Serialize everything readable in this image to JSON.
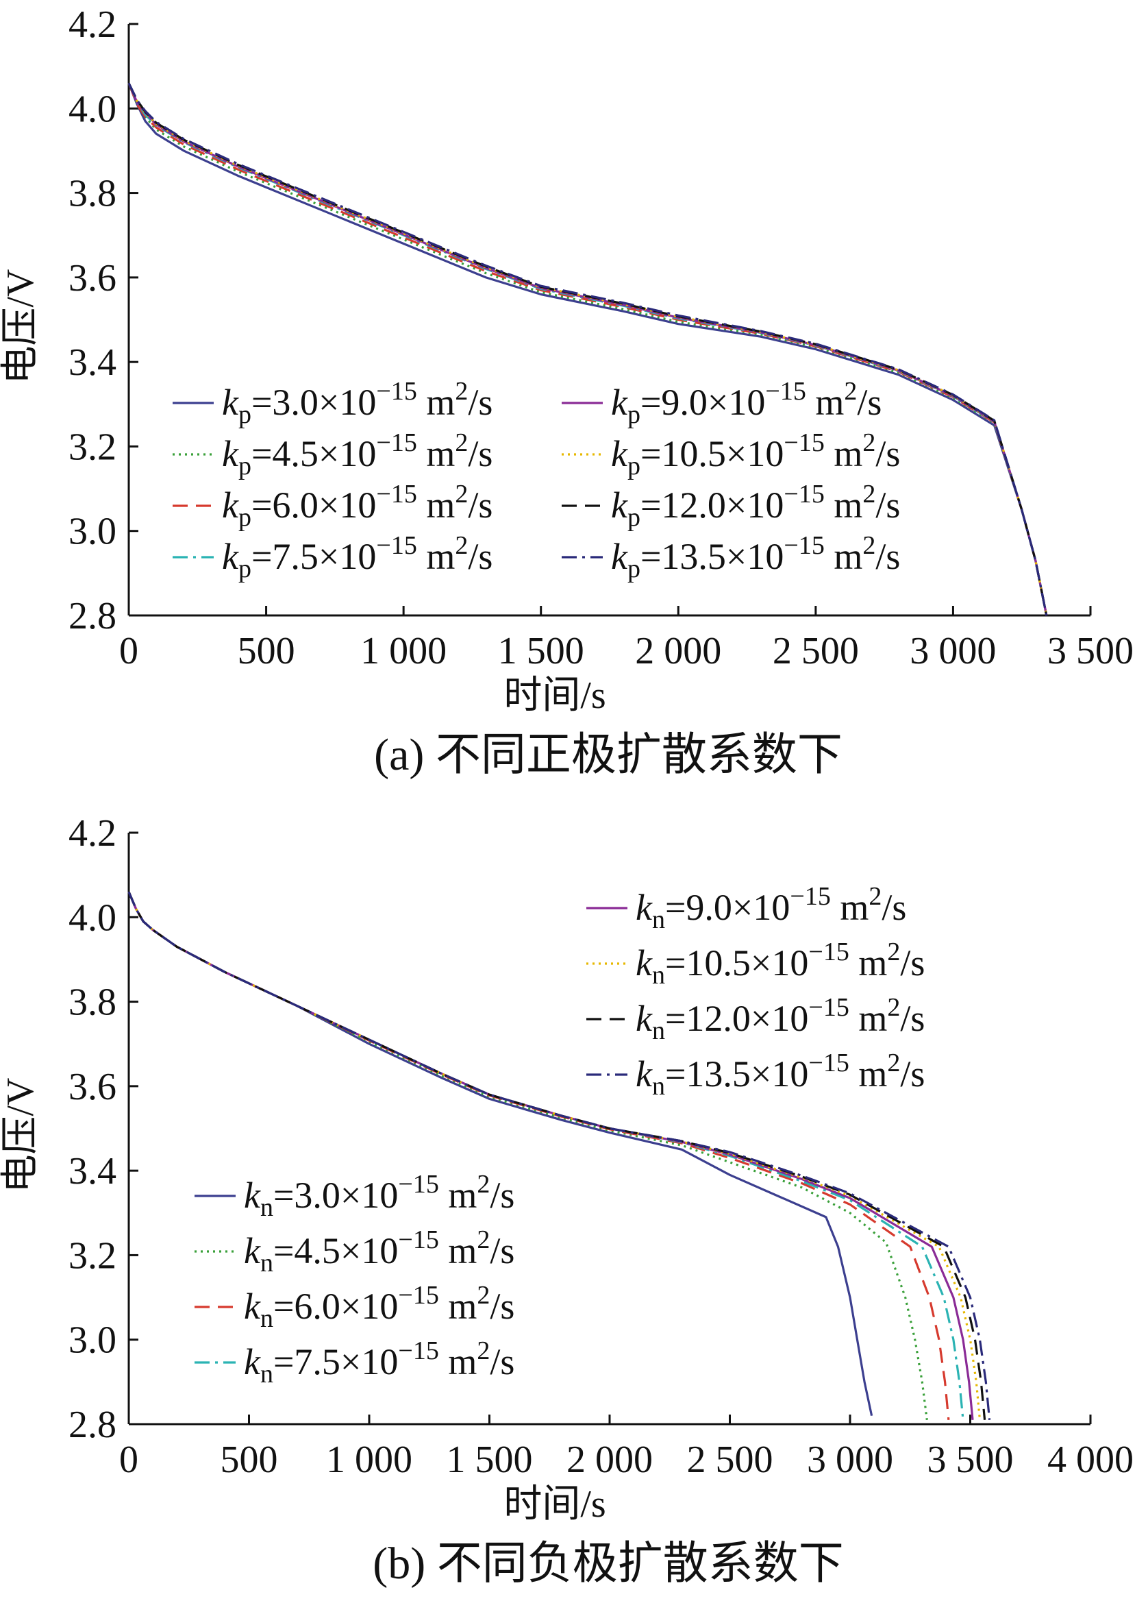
{
  "chart_data": [
    {
      "type": "line",
      "caption": "(a) 不同正极扩散系数下",
      "xlabel": "时间/s",
      "ylabel": "电压/V",
      "xlim": [
        0,
        3500
      ],
      "ylim": [
        2.8,
        4.2
      ],
      "x_ticks": [
        0,
        500,
        1000,
        1500,
        2000,
        2500,
        3000,
        3500
      ],
      "x_tick_labels": [
        "0",
        "500",
        "1 000",
        "1 500",
        "2 000",
        "2 500",
        "3 000",
        "3 500"
      ],
      "y_ticks": [
        2.8,
        3.0,
        3.2,
        3.4,
        3.6,
        3.8,
        4.0,
        4.2
      ],
      "y_tick_labels": [
        "2.8",
        "3.0",
        "3.2",
        "3.4",
        "3.6",
        "3.8",
        "4.0",
        "4.2"
      ],
      "grid": false,
      "legend": {
        "placement": "lower-center",
        "columns": 2
      },
      "series": [
        {
          "sym": "k",
          "sub": "p",
          "val": "=3.0×10",
          "exp": "−15",
          "unit": " m",
          "unit_exp": "2",
          "unit_tail": "/s",
          "color": "#3c3f8f",
          "dash": "solid",
          "x": [
            0,
            30,
            60,
            100,
            200,
            400,
            700,
            1000,
            1300,
            1500,
            1800,
            2000,
            2300,
            2500,
            2800,
            3000,
            3150,
            3250,
            3300,
            3340
          ],
          "y": [
            4.06,
            4.01,
            3.97,
            3.94,
            3.9,
            3.84,
            3.76,
            3.68,
            3.6,
            3.56,
            3.52,
            3.49,
            3.46,
            3.43,
            3.37,
            3.31,
            3.25,
            3.05,
            2.93,
            2.8
          ]
        },
        {
          "sym": "k",
          "sub": "p",
          "val": "=4.5×10",
          "exp": "−15",
          "unit": " m",
          "unit_exp": "2",
          "unit_tail": "/s",
          "color": "#3aa03a",
          "dash": "dotted",
          "x": [
            0,
            30,
            60,
            100,
            200,
            400,
            700,
            1000,
            1300,
            1500,
            1800,
            2000,
            2300,
            2500,
            2800,
            3000,
            3150,
            3250,
            3300,
            3340
          ],
          "y": [
            4.06,
            4.01,
            3.98,
            3.95,
            3.91,
            3.85,
            3.77,
            3.69,
            3.61,
            3.565,
            3.525,
            3.495,
            3.465,
            3.435,
            3.375,
            3.315,
            3.255,
            3.05,
            2.93,
            2.8
          ]
        },
        {
          "sym": "k",
          "sub": "p",
          "val": "=6.0×10",
          "exp": "−15",
          "unit": " m",
          "unit_exp": "2",
          "unit_tail": "/s",
          "color": "#d63a2e",
          "dash": "dashed",
          "x": [
            0,
            30,
            60,
            100,
            200,
            400,
            700,
            1000,
            1300,
            1500,
            1800,
            2000,
            2300,
            2500,
            2800,
            3000,
            3150,
            3250,
            3300,
            3340
          ],
          "y": [
            4.06,
            4.01,
            3.98,
            3.955,
            3.915,
            3.855,
            3.775,
            3.695,
            3.615,
            3.57,
            3.53,
            3.5,
            3.467,
            3.437,
            3.377,
            3.317,
            3.257,
            3.05,
            2.93,
            2.8
          ]
        },
        {
          "sym": "k",
          "sub": "p",
          "val": "=7.5×10",
          "exp": "−15",
          "unit": " m",
          "unit_exp": "2",
          "unit_tail": "/s",
          "color": "#2bb3b3",
          "dash": "dashdot",
          "x": [
            0,
            30,
            60,
            100,
            200,
            400,
            700,
            1000,
            1300,
            1500,
            1800,
            2000,
            2300,
            2500,
            2800,
            3000,
            3150,
            3250,
            3300,
            3340
          ],
          "y": [
            4.06,
            4.015,
            3.985,
            3.96,
            3.92,
            3.86,
            3.78,
            3.7,
            3.62,
            3.573,
            3.533,
            3.503,
            3.469,
            3.439,
            3.379,
            3.319,
            3.258,
            3.05,
            2.93,
            2.8
          ]
        },
        {
          "sym": "k",
          "sub": "p",
          "val": "=9.0×10",
          "exp": "−15",
          "unit": " m",
          "unit_exp": "2",
          "unit_tail": "/s",
          "color": "#8a2b96",
          "dash": "solid",
          "x": [
            0,
            30,
            60,
            100,
            200,
            400,
            700,
            1000,
            1300,
            1500,
            1800,
            2000,
            2300,
            2500,
            2800,
            3000,
            3150,
            3250,
            3300,
            3340
          ],
          "y": [
            4.06,
            4.015,
            3.99,
            3.962,
            3.922,
            3.862,
            3.782,
            3.702,
            3.622,
            3.575,
            3.535,
            3.505,
            3.47,
            3.44,
            3.38,
            3.32,
            3.259,
            3.05,
            2.93,
            2.8
          ]
        },
        {
          "sym": "k",
          "sub": "p",
          "val": "=10.5×10",
          "exp": "−15",
          "unit": " m",
          "unit_exp": "2",
          "unit_tail": "/s",
          "color": "#e6b800",
          "dash": "dotted",
          "x": [
            0,
            30,
            60,
            100,
            200,
            400,
            700,
            1000,
            1300,
            1500,
            1800,
            2000,
            2300,
            2500,
            2800,
            3000,
            3150,
            3250,
            3300,
            3340
          ],
          "y": [
            4.06,
            4.018,
            3.99,
            3.964,
            3.924,
            3.864,
            3.784,
            3.704,
            3.624,
            3.577,
            3.537,
            3.507,
            3.471,
            3.441,
            3.381,
            3.321,
            3.26,
            3.05,
            2.93,
            2.8
          ]
        },
        {
          "sym": "k",
          "sub": "p",
          "val": "=12.0×10",
          "exp": "−15",
          "unit": " m",
          "unit_exp": "2",
          "unit_tail": "/s",
          "color": "#111111",
          "dash": "dashed",
          "x": [
            0,
            30,
            60,
            100,
            200,
            400,
            700,
            1000,
            1300,
            1500,
            1800,
            2000,
            2300,
            2500,
            2800,
            3000,
            3150,
            3250,
            3300,
            3340
          ],
          "y": [
            4.06,
            4.02,
            3.992,
            3.966,
            3.926,
            3.866,
            3.786,
            3.706,
            3.626,
            3.578,
            3.538,
            3.508,
            3.472,
            3.442,
            3.382,
            3.322,
            3.261,
            3.05,
            2.93,
            2.8
          ]
        },
        {
          "sym": "k",
          "sub": "p",
          "val": "=13.5×10",
          "exp": "−15",
          "unit": " m",
          "unit_exp": "2",
          "unit_tail": "/s",
          "color": "#2a2a7a",
          "dash": "dashdot",
          "x": [
            0,
            30,
            60,
            100,
            200,
            400,
            700,
            1000,
            1300,
            1500,
            1800,
            2000,
            2300,
            2500,
            2800,
            3000,
            3150,
            3250,
            3300,
            3340
          ],
          "y": [
            4.06,
            4.02,
            3.994,
            3.968,
            3.928,
            3.868,
            3.788,
            3.708,
            3.628,
            3.58,
            3.54,
            3.51,
            3.473,
            3.443,
            3.383,
            3.323,
            3.262,
            3.05,
            2.93,
            2.8
          ]
        }
      ]
    },
    {
      "type": "line",
      "caption": "(b) 不同负极扩散系数下",
      "xlabel": "时间/s",
      "ylabel": "电压/V",
      "xlim": [
        0,
        4000
      ],
      "ylim": [
        2.8,
        4.2
      ],
      "x_ticks": [
        0,
        500,
        1000,
        1500,
        2000,
        2500,
        3000,
        3500,
        4000
      ],
      "x_tick_labels": [
        "0",
        "500",
        "1 000",
        "1 500",
        "2 000",
        "2 500",
        "3 000",
        "3 500",
        "4 000"
      ],
      "y_ticks": [
        2.8,
        3.0,
        3.2,
        3.4,
        3.6,
        3.8,
        4.0,
        4.2
      ],
      "y_tick_labels": [
        "2.8",
        "3.0",
        "3.2",
        "3.4",
        "3.6",
        "3.8",
        "4.0",
        "4.2"
      ],
      "grid": false,
      "legend": {
        "placement": "split: upper-right and lower-left",
        "columns": 1
      },
      "series": [
        {
          "sym": "k",
          "sub": "n",
          "val": "=3.0×10",
          "exp": "−15",
          "unit": " m",
          "unit_exp": "2",
          "unit_tail": "/s",
          "color": "#3c3f8f",
          "dash": "solid",
          "x": [
            0,
            30,
            60,
            100,
            200,
            400,
            700,
            1000,
            1300,
            1500,
            1800,
            2000,
            2300,
            2500,
            2700,
            2900,
            2950,
            3000,
            3030,
            3060,
            3090
          ],
          "y": [
            4.06,
            4.02,
            3.99,
            3.97,
            3.93,
            3.87,
            3.79,
            3.7,
            3.62,
            3.57,
            3.52,
            3.49,
            3.45,
            3.39,
            3.34,
            3.29,
            3.22,
            3.1,
            3.0,
            2.9,
            2.82
          ]
        },
        {
          "sym": "k",
          "sub": "n",
          "val": "=4.5×10",
          "exp": "−15",
          "unit": " m",
          "unit_exp": "2",
          "unit_tail": "/s",
          "color": "#3aa03a",
          "dash": "dotted",
          "x": [
            0,
            30,
            60,
            100,
            200,
            400,
            700,
            1000,
            1300,
            1500,
            1800,
            2000,
            2300,
            2500,
            2800,
            3000,
            3150,
            3230,
            3270,
            3300,
            3320
          ],
          "y": [
            4.06,
            4.02,
            3.99,
            3.97,
            3.93,
            3.87,
            3.79,
            3.705,
            3.625,
            3.575,
            3.525,
            3.495,
            3.46,
            3.42,
            3.36,
            3.3,
            3.23,
            3.1,
            3.0,
            2.9,
            2.81
          ]
        },
        {
          "sym": "k",
          "sub": "n",
          "val": "=6.0×10",
          "exp": "−15",
          "unit": " m",
          "unit_exp": "2",
          "unit_tail": "/s",
          "color": "#d63a2e",
          "dash": "dashed",
          "x": [
            0,
            30,
            60,
            100,
            200,
            400,
            700,
            1000,
            1300,
            1500,
            1800,
            2000,
            2300,
            2500,
            2800,
            3000,
            3250,
            3330,
            3370,
            3395,
            3410
          ],
          "y": [
            4.06,
            4.02,
            3.99,
            3.97,
            3.93,
            3.87,
            3.79,
            3.708,
            3.628,
            3.578,
            3.528,
            3.498,
            3.465,
            3.43,
            3.37,
            3.32,
            3.22,
            3.1,
            3.0,
            2.9,
            2.81
          ]
        },
        {
          "sym": "k",
          "sub": "n",
          "val": "=7.5×10",
          "exp": "−15",
          "unit": " m",
          "unit_exp": "2",
          "unit_tail": "/s",
          "color": "#2bb3b3",
          "dash": "dashdot",
          "x": [
            0,
            30,
            60,
            100,
            200,
            400,
            700,
            1000,
            1300,
            1500,
            1800,
            2000,
            2300,
            2500,
            2800,
            3000,
            3300,
            3390,
            3430,
            3455,
            3470
          ],
          "y": [
            4.06,
            4.02,
            3.99,
            3.97,
            3.93,
            3.87,
            3.79,
            3.71,
            3.63,
            3.58,
            3.53,
            3.5,
            3.467,
            3.435,
            3.375,
            3.33,
            3.22,
            3.1,
            3.0,
            2.9,
            2.81
          ]
        },
        {
          "sym": "k",
          "sub": "n",
          "val": "=9.0×10",
          "exp": "−15",
          "unit": " m",
          "unit_exp": "2",
          "unit_tail": "/s",
          "color": "#8a2b96",
          "dash": "solid",
          "x": [
            0,
            30,
            60,
            100,
            200,
            400,
            700,
            1000,
            1300,
            1500,
            1800,
            2000,
            2300,
            2500,
            2800,
            3000,
            3340,
            3430,
            3470,
            3495,
            3510
          ],
          "y": [
            4.06,
            4.02,
            3.99,
            3.97,
            3.93,
            3.87,
            3.79,
            3.71,
            3.63,
            3.58,
            3.53,
            3.5,
            3.468,
            3.438,
            3.38,
            3.335,
            3.22,
            3.1,
            3.0,
            2.9,
            2.81
          ]
        },
        {
          "sym": "k",
          "sub": "n",
          "val": "=10.5×10",
          "exp": "−15",
          "unit": " m",
          "unit_exp": "2",
          "unit_tail": "/s",
          "color": "#e6b800",
          "dash": "dotted",
          "x": [
            0,
            30,
            60,
            100,
            200,
            400,
            700,
            1000,
            1300,
            1500,
            1800,
            2000,
            2300,
            2500,
            2800,
            3000,
            3370,
            3460,
            3500,
            3525,
            3540
          ],
          "y": [
            4.06,
            4.02,
            3.99,
            3.97,
            3.93,
            3.87,
            3.79,
            3.71,
            3.63,
            3.58,
            3.53,
            3.5,
            3.469,
            3.44,
            3.383,
            3.34,
            3.22,
            3.1,
            3.0,
            2.9,
            2.81
          ]
        },
        {
          "sym": "k",
          "sub": "n",
          "val": "=12.0×10",
          "exp": "−15",
          "unit": " m",
          "unit_exp": "2",
          "unit_tail": "/s",
          "color": "#111111",
          "dash": "dashed",
          "x": [
            0,
            30,
            60,
            100,
            200,
            400,
            700,
            1000,
            1300,
            1500,
            1800,
            2000,
            2300,
            2500,
            2800,
            3000,
            3390,
            3480,
            3520,
            3545,
            3560
          ],
          "y": [
            4.06,
            4.02,
            3.99,
            3.97,
            3.93,
            3.87,
            3.79,
            3.71,
            3.63,
            3.58,
            3.53,
            3.5,
            3.47,
            3.442,
            3.386,
            3.343,
            3.22,
            3.1,
            3.0,
            2.9,
            2.81
          ]
        },
        {
          "sym": "k",
          "sub": "n",
          "val": "=13.5×10",
          "exp": "−15",
          "unit": " m",
          "unit_exp": "2",
          "unit_tail": "/s",
          "color": "#2a2a7a",
          "dash": "dashdot",
          "x": [
            0,
            30,
            60,
            100,
            200,
            400,
            700,
            1000,
            1300,
            1500,
            1800,
            2000,
            2300,
            2500,
            2800,
            3000,
            3410,
            3500,
            3540,
            3565,
            3580
          ],
          "y": [
            4.06,
            4.02,
            3.99,
            3.97,
            3.93,
            3.87,
            3.79,
            3.71,
            3.63,
            3.58,
            3.53,
            3.5,
            3.47,
            3.444,
            3.388,
            3.346,
            3.22,
            3.1,
            3.0,
            2.9,
            2.81
          ]
        }
      ]
    }
  ]
}
